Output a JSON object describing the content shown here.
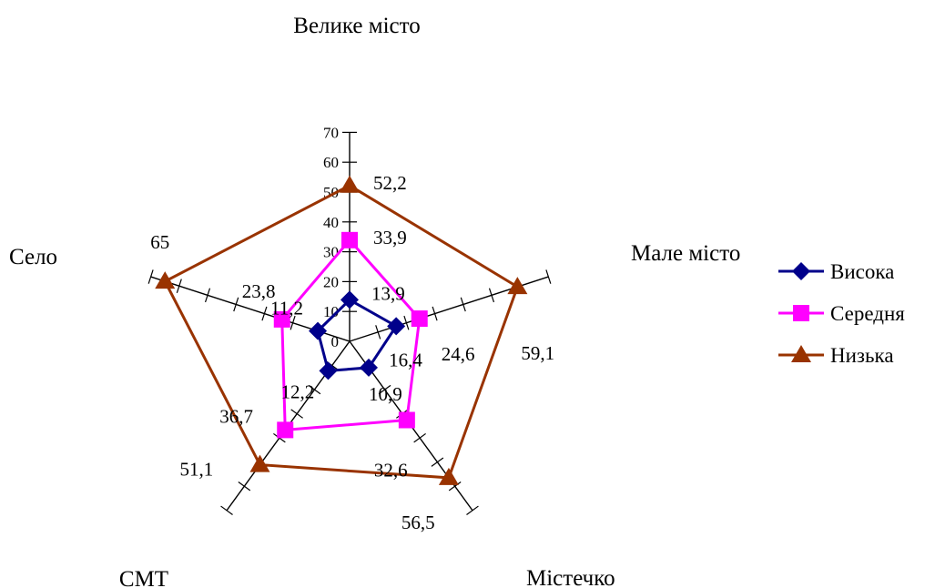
{
  "chart_data": {
    "type": "radar",
    "categories": [
      "Велике місто",
      "Мале місто",
      "Містечко",
      "СМТ",
      "Село"
    ],
    "r_range": [
      0,
      70
    ],
    "r_ticks": [
      "0",
      "10",
      "20",
      "30",
      "40",
      "50",
      "60",
      "70"
    ],
    "series": [
      {
        "name": "Висока",
        "values": [
          13.9,
          16.4,
          10.9,
          12.2,
          11.2
        ],
        "labels": [
          "13,9",
          "16,4",
          "10,9",
          "12,2",
          "11,2"
        ],
        "color": "#00008B",
        "marker": "diamond"
      },
      {
        "name": "Середня",
        "values": [
          33.9,
          24.6,
          32.6,
          36.7,
          23.8
        ],
        "labels": [
          "33,9",
          "24,6",
          "32,6",
          "36,7",
          "23,8"
        ],
        "color": "#FF00FF",
        "marker": "square"
      },
      {
        "name": "Низька",
        "values": [
          52.2,
          59.1,
          56.5,
          51.1,
          65.0
        ],
        "labels": [
          "52,2",
          "59,1",
          "56,5",
          "51,1",
          "65"
        ],
        "color": "#993300",
        "marker": "triangle"
      }
    ],
    "legend_position": "right",
    "grid": false
  }
}
